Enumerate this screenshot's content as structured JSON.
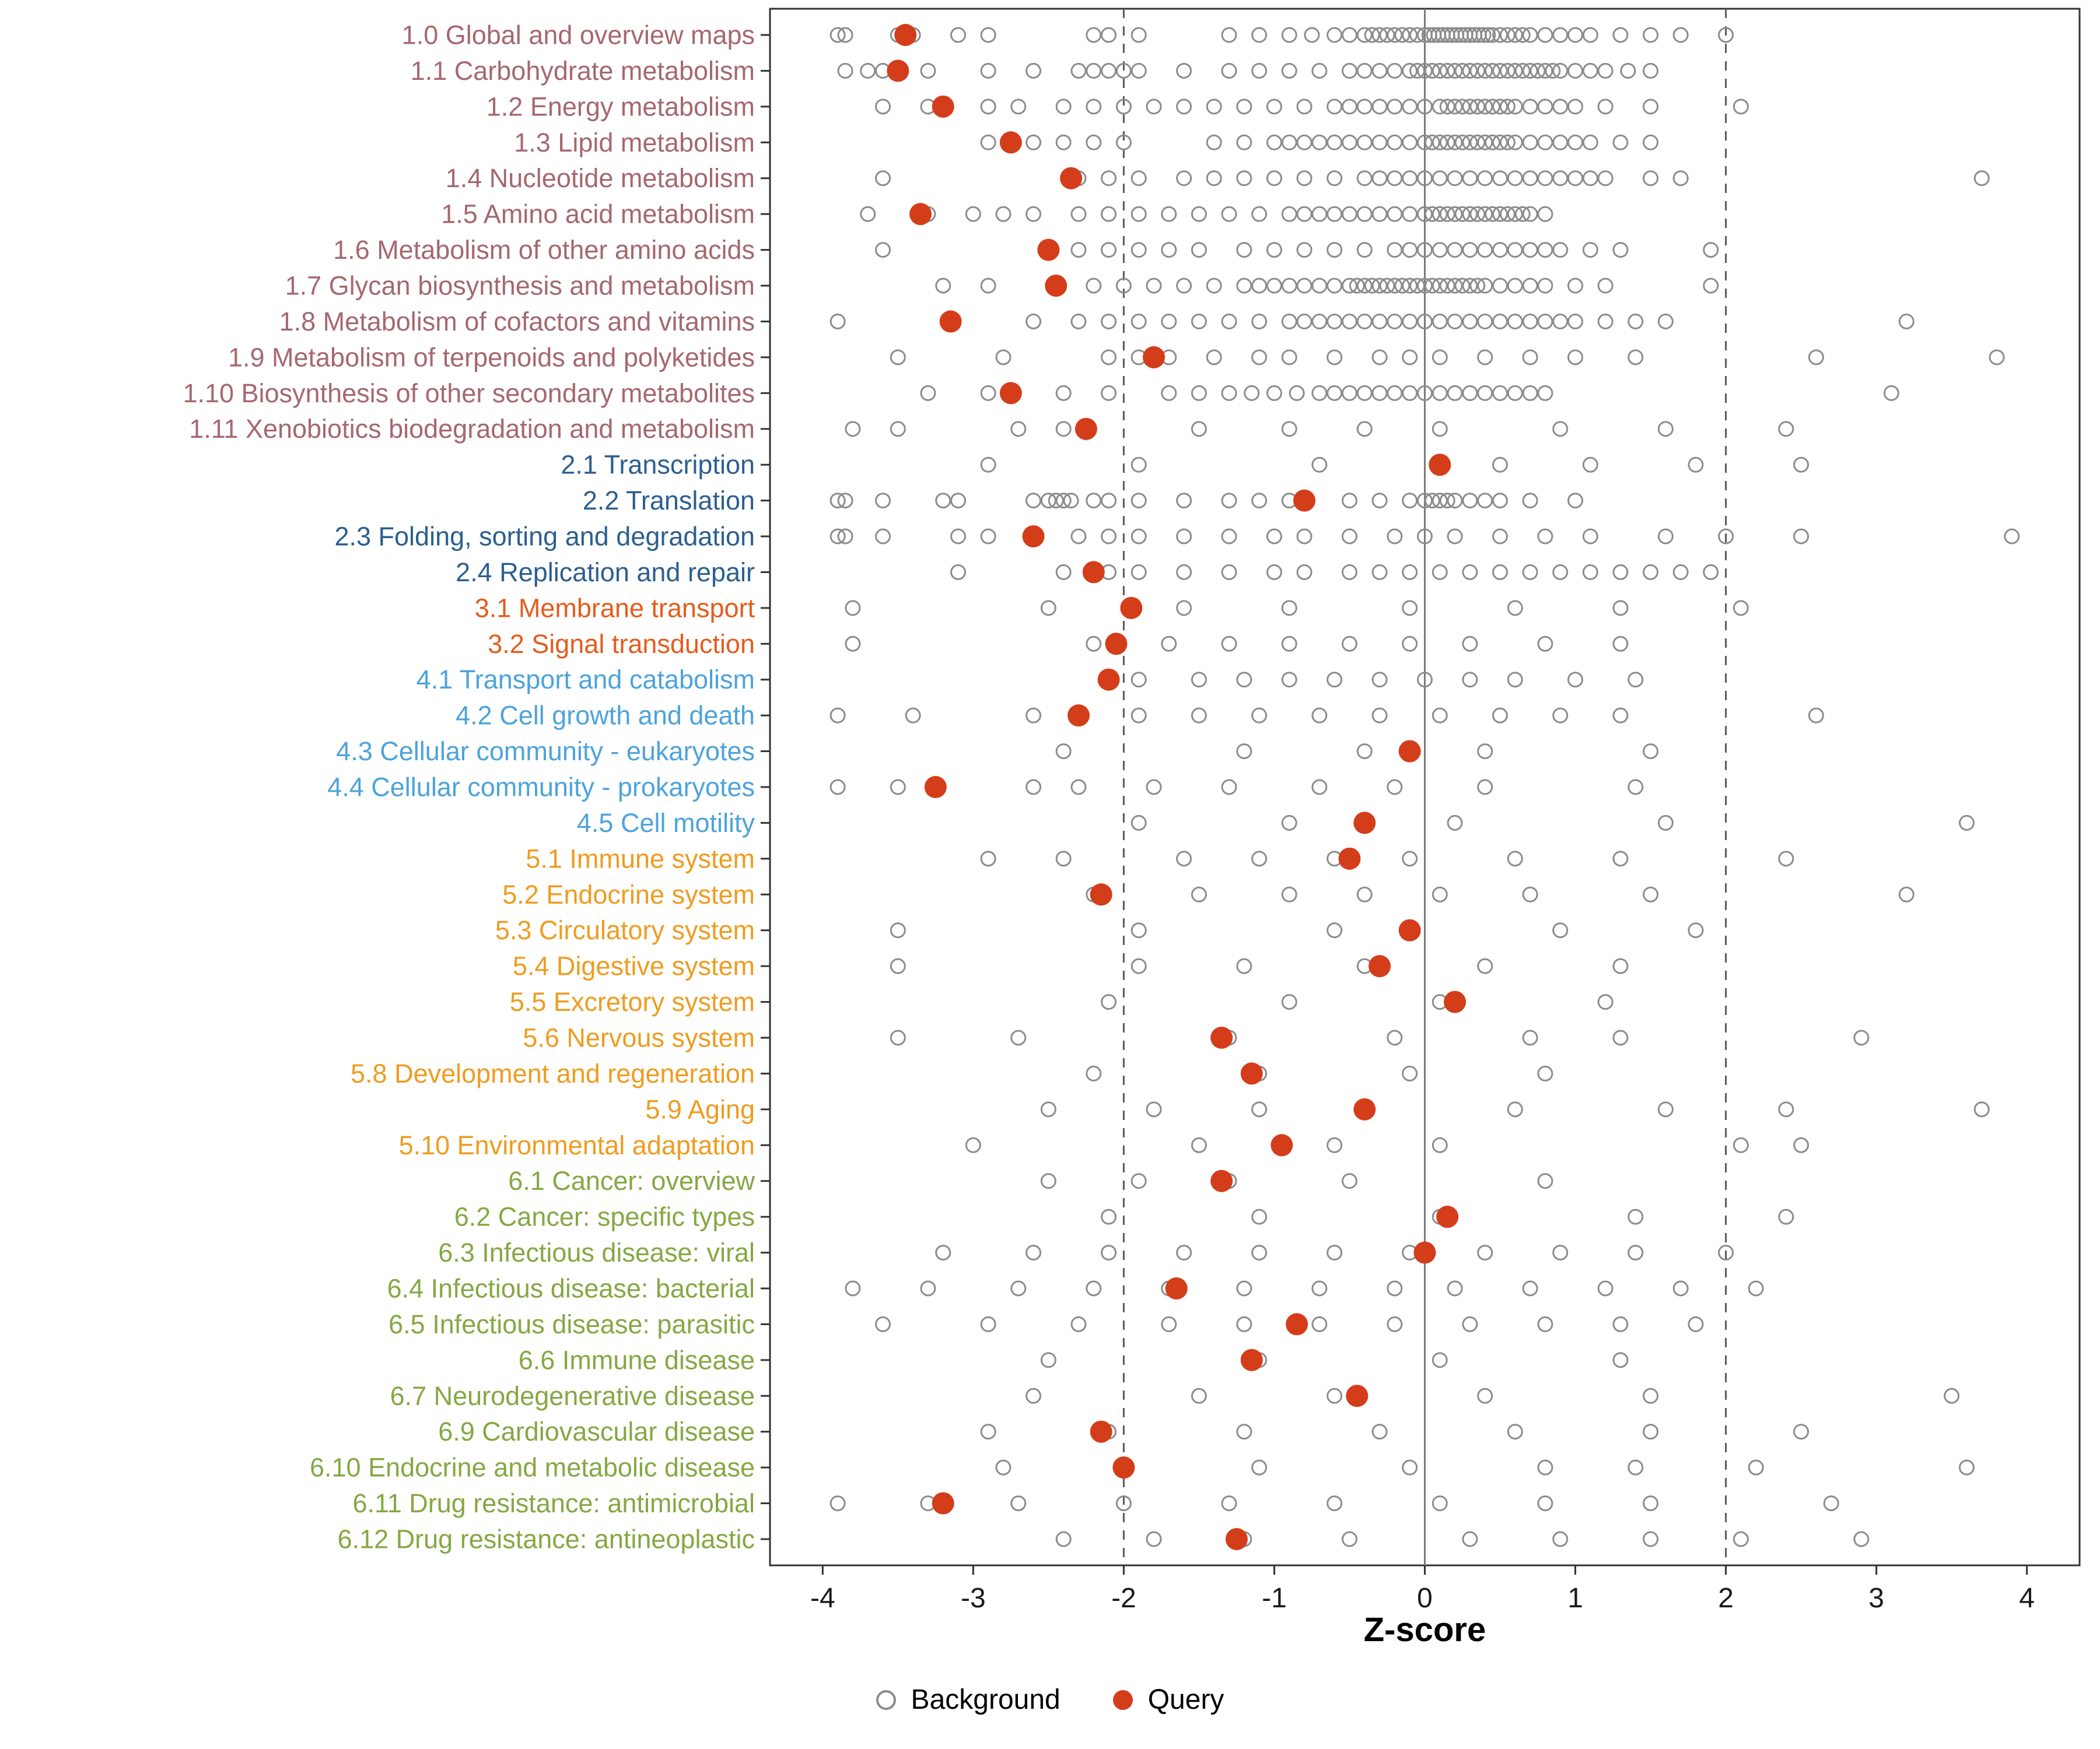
{
  "chart_data": {
    "type": "scatter",
    "title": "",
    "xlabel": "Z-score",
    "xlim": [
      -4.35,
      4.35
    ],
    "x_ticks": [
      -4,
      -3,
      -2,
      -1,
      0,
      1,
      2,
      3,
      4
    ],
    "reference_lines": {
      "solid": [
        0
      ],
      "dashed": [
        -2,
        2
      ]
    },
    "grid": false,
    "legend_position": "bottom",
    "legend": [
      {
        "label": "Background",
        "type": "open"
      },
      {
        "label": "Query",
        "type": "filled"
      }
    ],
    "colors": {
      "query": "#d43d1a",
      "background_stroke": "#8c8c8c",
      "axis": "#333333",
      "groups": {
        "1": "#a5686f",
        "2": "#2c5f8f",
        "3": "#e55c1c",
        "4": "#4da3db",
        "5": "#ef9c20",
        "6": "#85a843"
      }
    },
    "rows": [
      {
        "label": "1.0 Global and overview maps",
        "group": "1",
        "query": -3.45,
        "background": [
          -3.9,
          -3.85,
          -3.5,
          -3.4,
          -3.1,
          -2.9,
          -2.2,
          -2.1,
          -1.9,
          -1.3,
          -1.1,
          -0.9,
          -0.75,
          -0.6,
          -0.5,
          -0.4,
          -0.35,
          -0.3,
          -0.25,
          -0.2,
          -0.15,
          -0.1,
          -0.05,
          0,
          0.03,
          0.06,
          0.09,
          0.12,
          0.15,
          0.18,
          0.21,
          0.24,
          0.27,
          0.3,
          0.33,
          0.36,
          0.39,
          0.42,
          0.45,
          0.5,
          0.55,
          0.6,
          0.65,
          0.7,
          0.8,
          0.9,
          1.0,
          1.1,
          1.3,
          1.5,
          1.7,
          2.0
        ]
      },
      {
        "label": "1.1 Carbohydrate metabolism",
        "group": "1",
        "query": -3.5,
        "background": [
          -3.85,
          -3.7,
          -3.6,
          -3.3,
          -2.9,
          -2.6,
          -2.3,
          -2.2,
          -2.1,
          -2.0,
          -1.9,
          -1.6,
          -1.3,
          -1.1,
          -0.9,
          -0.7,
          -0.5,
          -0.4,
          -0.3,
          -0.2,
          -0.1,
          -0.05,
          0,
          0.05,
          0.1,
          0.15,
          0.2,
          0.25,
          0.3,
          0.35,
          0.4,
          0.45,
          0.5,
          0.55,
          0.6,
          0.65,
          0.7,
          0.75,
          0.8,
          0.85,
          0.9,
          1.0,
          1.1,
          1.2,
          1.35,
          1.5
        ]
      },
      {
        "label": "1.2 Energy metabolism",
        "group": "1",
        "query": -3.2,
        "background": [
          -3.6,
          -3.3,
          -2.9,
          -2.7,
          -2.4,
          -2.2,
          -2.0,
          -1.8,
          -1.6,
          -1.4,
          -1.2,
          -1.0,
          -0.8,
          -0.6,
          -0.5,
          -0.4,
          -0.3,
          -0.2,
          -0.1,
          0,
          0.1,
          0.15,
          0.2,
          0.25,
          0.3,
          0.35,
          0.4,
          0.45,
          0.5,
          0.55,
          0.6,
          0.7,
          0.8,
          0.9,
          1.0,
          1.2,
          1.5,
          2.1
        ]
      },
      {
        "label": "1.3 Lipid metabolism",
        "group": "1",
        "query": -2.75,
        "background": [
          -2.9,
          -2.6,
          -2.4,
          -2.2,
          -2.0,
          -1.4,
          -1.2,
          -1.0,
          -0.9,
          -0.8,
          -0.7,
          -0.6,
          -0.5,
          -0.4,
          -0.3,
          -0.2,
          -0.1,
          0,
          0.05,
          0.1,
          0.15,
          0.2,
          0.25,
          0.3,
          0.35,
          0.4,
          0.45,
          0.5,
          0.55,
          0.6,
          0.7,
          0.8,
          0.9,
          1.0,
          1.1,
          1.3,
          1.5
        ]
      },
      {
        "label": "1.4 Nucleotide metabolism",
        "group": "1",
        "query": -2.35,
        "background": [
          -3.6,
          -2.3,
          -2.1,
          -1.9,
          -1.6,
          -1.4,
          -1.2,
          -1.0,
          -0.8,
          -0.6,
          -0.4,
          -0.3,
          -0.2,
          -0.1,
          0,
          0.1,
          0.2,
          0.3,
          0.4,
          0.5,
          0.6,
          0.7,
          0.8,
          0.9,
          1.0,
          1.1,
          1.2,
          1.5,
          1.7,
          3.7
        ]
      },
      {
        "label": "1.5 Amino acid metabolism",
        "group": "1",
        "query": -3.35,
        "background": [
          -3.7,
          -3.3,
          -3.0,
          -2.8,
          -2.6,
          -2.3,
          -2.1,
          -1.9,
          -1.7,
          -1.5,
          -1.3,
          -1.1,
          -0.9,
          -0.8,
          -0.7,
          -0.6,
          -0.5,
          -0.4,
          -0.3,
          -0.2,
          -0.1,
          0,
          0.05,
          0.1,
          0.15,
          0.2,
          0.25,
          0.3,
          0.35,
          0.4,
          0.45,
          0.5,
          0.55,
          0.6,
          0.65,
          0.7,
          0.8
        ]
      },
      {
        "label": "1.6 Metabolism of other amino acids",
        "group": "1",
        "query": -2.5,
        "background": [
          -3.6,
          -2.3,
          -2.1,
          -1.9,
          -1.7,
          -1.5,
          -1.2,
          -1.0,
          -0.8,
          -0.6,
          -0.4,
          -0.2,
          -0.1,
          0,
          0.1,
          0.2,
          0.3,
          0.4,
          0.5,
          0.6,
          0.7,
          0.8,
          0.9,
          1.1,
          1.3,
          1.9
        ]
      },
      {
        "label": "1.7 Glycan biosynthesis and metabolism",
        "group": "1",
        "query": -2.45,
        "background": [
          -3.2,
          -2.9,
          -2.2,
          -2.0,
          -1.8,
          -1.6,
          -1.4,
          -1.2,
          -1.1,
          -1.0,
          -0.9,
          -0.8,
          -0.7,
          -0.6,
          -0.5,
          -0.45,
          -0.4,
          -0.35,
          -0.3,
          -0.25,
          -0.2,
          -0.15,
          -0.1,
          -0.05,
          0,
          0.05,
          0.1,
          0.15,
          0.2,
          0.25,
          0.3,
          0.35,
          0.4,
          0.5,
          0.6,
          0.7,
          0.8,
          1.0,
          1.2,
          1.9
        ]
      },
      {
        "label": "1.8 Metabolism of cofactors and vitamins",
        "group": "1",
        "query": -3.15,
        "background": [
          -3.9,
          -2.6,
          -2.3,
          -2.1,
          -1.9,
          -1.7,
          -1.5,
          -1.3,
          -1.1,
          -0.9,
          -0.8,
          -0.7,
          -0.6,
          -0.5,
          -0.4,
          -0.3,
          -0.2,
          -0.1,
          0,
          0.1,
          0.2,
          0.3,
          0.4,
          0.5,
          0.6,
          0.7,
          0.8,
          0.9,
          1.0,
          1.2,
          1.4,
          1.6,
          3.2
        ]
      },
      {
        "label": "1.9 Metabolism of terpenoids and polyketides",
        "group": "1",
        "query": -1.8,
        "background": [
          -3.5,
          -2.8,
          -2.1,
          -1.9,
          -1.7,
          -1.4,
          -1.1,
          -0.9,
          -0.6,
          -0.3,
          -0.1,
          0.1,
          0.4,
          0.7,
          1.0,
          1.4,
          2.6,
          3.8
        ]
      },
      {
        "label": "1.10 Biosynthesis of other secondary metabolites",
        "group": "1",
        "query": -2.75,
        "background": [
          -3.3,
          -2.9,
          -2.4,
          -2.1,
          -1.7,
          -1.5,
          -1.3,
          -1.15,
          -1.0,
          -0.85,
          -0.7,
          -0.6,
          -0.5,
          -0.4,
          -0.3,
          -0.2,
          -0.1,
          0,
          0.1,
          0.2,
          0.3,
          0.4,
          0.5,
          0.6,
          0.7,
          0.8,
          3.1
        ]
      },
      {
        "label": "1.11 Xenobiotics biodegradation and metabolism",
        "group": "1",
        "query": -2.25,
        "background": [
          -3.8,
          -3.5,
          -2.7,
          -2.4,
          -1.5,
          -0.9,
          -0.4,
          0.1,
          0.9,
          1.6,
          2.4
        ]
      },
      {
        "label": "2.1 Transcription",
        "group": "2",
        "query": 0.1,
        "background": [
          -2.9,
          -1.9,
          -0.7,
          0.5,
          1.1,
          1.8,
          2.5
        ]
      },
      {
        "label": "2.2 Translation",
        "group": "2",
        "query": -0.8,
        "background": [
          -3.9,
          -3.85,
          -3.6,
          -3.2,
          -3.1,
          -2.6,
          -2.5,
          -2.45,
          -2.4,
          -2.35,
          -2.2,
          -2.1,
          -1.9,
          -1.6,
          -1.3,
          -1.1,
          -0.9,
          -0.5,
          -0.3,
          -0.1,
          0,
          0.05,
          0.1,
          0.15,
          0.2,
          0.3,
          0.4,
          0.5,
          0.7,
          1.0
        ]
      },
      {
        "label": "2.3 Folding, sorting and degradation",
        "group": "2",
        "query": -2.6,
        "background": [
          -3.9,
          -3.85,
          -3.6,
          -3.1,
          -2.9,
          -2.3,
          -2.1,
          -1.9,
          -1.6,
          -1.3,
          -1.0,
          -0.8,
          -0.5,
          -0.2,
          0,
          0.2,
          0.5,
          0.8,
          1.1,
          1.6,
          2.0,
          2.5,
          3.9
        ]
      },
      {
        "label": "2.4 Replication and repair",
        "group": "2",
        "query": -2.2,
        "background": [
          -3.1,
          -2.4,
          -2.1,
          -1.9,
          -1.6,
          -1.3,
          -1.0,
          -0.8,
          -0.5,
          -0.3,
          -0.1,
          0.1,
          0.3,
          0.5,
          0.7,
          0.9,
          1.1,
          1.3,
          1.5,
          1.7,
          1.9
        ]
      },
      {
        "label": "3.1 Membrane transport",
        "group": "3",
        "query": -1.95,
        "background": [
          -3.8,
          -2.5,
          -1.6,
          -0.9,
          -0.1,
          0.6,
          1.3,
          2.1
        ]
      },
      {
        "label": "3.2 Signal transduction",
        "group": "3",
        "query": -2.05,
        "background": [
          -3.8,
          -2.2,
          -1.7,
          -1.3,
          -0.9,
          -0.5,
          -0.1,
          0.3,
          0.8,
          1.3
        ]
      },
      {
        "label": "4.1 Transport and catabolism",
        "group": "4",
        "query": -2.1,
        "background": [
          -2.1,
          -1.9,
          -1.5,
          -1.2,
          -0.9,
          -0.6,
          -0.3,
          0,
          0.3,
          0.6,
          1.0,
          1.4
        ]
      },
      {
        "label": "4.2 Cell growth and death",
        "group": "4",
        "query": -2.3,
        "background": [
          -3.9,
          -3.4,
          -2.6,
          -2.3,
          -1.9,
          -1.5,
          -1.1,
          -0.7,
          -0.3,
          0.1,
          0.5,
          0.9,
          1.3,
          2.6
        ]
      },
      {
        "label": "4.3 Cellular community - eukaryotes",
        "group": "4",
        "query": -0.1,
        "background": [
          -2.4,
          -1.2,
          -0.4,
          0.4,
          1.5
        ]
      },
      {
        "label": "4.4 Cellular community - prokaryotes",
        "group": "4",
        "query": -3.25,
        "background": [
          -3.9,
          -3.5,
          -2.6,
          -2.3,
          -1.8,
          -1.3,
          -0.7,
          -0.2,
          0.4,
          1.4
        ]
      },
      {
        "label": "4.5 Cell motility",
        "group": "4",
        "query": -0.4,
        "background": [
          -1.9,
          -0.9,
          0.2,
          1.6,
          3.6
        ]
      },
      {
        "label": "5.1 Immune system",
        "group": "5",
        "query": -0.5,
        "background": [
          -2.9,
          -2.4,
          -1.6,
          -1.1,
          -0.6,
          -0.1,
          0.6,
          1.3,
          2.4
        ]
      },
      {
        "label": "5.2 Endocrine system",
        "group": "5",
        "query": -2.15,
        "background": [
          -2.2,
          -1.5,
          -0.9,
          -0.4,
          0.1,
          0.7,
          1.5,
          3.2
        ]
      },
      {
        "label": "5.3 Circulatory system",
        "group": "5",
        "query": -0.1,
        "background": [
          -3.5,
          -1.9,
          -0.6,
          0.9,
          1.8
        ]
      },
      {
        "label": "5.4 Digestive system",
        "group": "5",
        "query": -0.3,
        "background": [
          -3.5,
          -1.9,
          -1.2,
          -0.4,
          0.4,
          1.3
        ]
      },
      {
        "label": "5.5 Excretory system",
        "group": "5",
        "query": 0.2,
        "background": [
          -2.1,
          -0.9,
          0.1,
          1.2
        ]
      },
      {
        "label": "5.6 Nervous system",
        "group": "5",
        "query": -1.35,
        "background": [
          -3.5,
          -2.7,
          -1.3,
          -0.2,
          0.7,
          1.3,
          2.9
        ]
      },
      {
        "label": "5.8 Development and regeneration",
        "group": "5",
        "query": -1.15,
        "background": [
          -2.2,
          -1.1,
          -0.1,
          0.8
        ]
      },
      {
        "label": "5.9 Aging",
        "group": "5",
        "query": -0.4,
        "background": [
          -2.5,
          -1.8,
          -1.1,
          -0.4,
          0.6,
          1.6,
          2.4,
          3.7
        ]
      },
      {
        "label": "5.10 Environmental adaptation",
        "group": "5",
        "query": -0.95,
        "background": [
          -3.0,
          -1.5,
          -0.6,
          0.1,
          2.1,
          2.5
        ]
      },
      {
        "label": "6.1 Cancer: overview",
        "group": "6",
        "query": -1.35,
        "background": [
          -2.5,
          -1.9,
          -1.3,
          -0.5,
          0.8
        ]
      },
      {
        "label": "6.2 Cancer: specific types",
        "group": "6",
        "query": 0.15,
        "background": [
          -2.1,
          -1.1,
          0.1,
          1.4,
          2.4
        ]
      },
      {
        "label": "6.3 Infectious disease: viral",
        "group": "6",
        "query": 0.0,
        "background": [
          -3.2,
          -2.6,
          -2.1,
          -1.6,
          -1.1,
          -0.6,
          -0.1,
          0.4,
          0.9,
          1.4,
          2.0
        ]
      },
      {
        "label": "6.4 Infectious disease: bacterial",
        "group": "6",
        "query": -1.65,
        "background": [
          -3.8,
          -3.3,
          -2.7,
          -2.2,
          -1.7,
          -1.2,
          -0.7,
          -0.2,
          0.2,
          0.7,
          1.2,
          1.7,
          2.2
        ]
      },
      {
        "label": "6.5 Infectious disease: parasitic",
        "group": "6",
        "query": -0.85,
        "background": [
          -3.6,
          -2.9,
          -2.3,
          -1.7,
          -1.2,
          -0.7,
          -0.2,
          0.3,
          0.8,
          1.3,
          1.8
        ]
      },
      {
        "label": "6.6 Immune disease",
        "group": "6",
        "query": -1.15,
        "background": [
          -2.5,
          -1.1,
          0.1,
          1.3
        ]
      },
      {
        "label": "6.7 Neurodegenerative disease",
        "group": "6",
        "query": -0.45,
        "background": [
          -2.6,
          -1.5,
          -0.6,
          0.4,
          1.5,
          3.5
        ]
      },
      {
        "label": "6.9 Cardiovascular disease",
        "group": "6",
        "query": -2.15,
        "background": [
          -2.9,
          -2.1,
          -1.2,
          -0.3,
          0.6,
          1.5,
          2.5
        ]
      },
      {
        "label": "6.10 Endocrine and metabolic disease",
        "group": "6",
        "query": -2.0,
        "background": [
          -2.8,
          -2.0,
          -1.1,
          -0.1,
          0.8,
          1.4,
          2.2,
          3.6
        ]
      },
      {
        "label": "6.11 Drug resistance: antimicrobial",
        "group": "6",
        "query": -3.2,
        "background": [
          -3.9,
          -3.3,
          -2.7,
          -2.0,
          -1.3,
          -0.6,
          0.1,
          0.8,
          1.5,
          2.7
        ]
      },
      {
        "label": "6.12 Drug resistance: antineoplastic",
        "group": "6",
        "query": -1.25,
        "background": [
          -2.4,
          -1.8,
          -1.2,
          -0.5,
          0.3,
          0.9,
          1.5,
          2.1,
          2.9
        ]
      }
    ]
  }
}
